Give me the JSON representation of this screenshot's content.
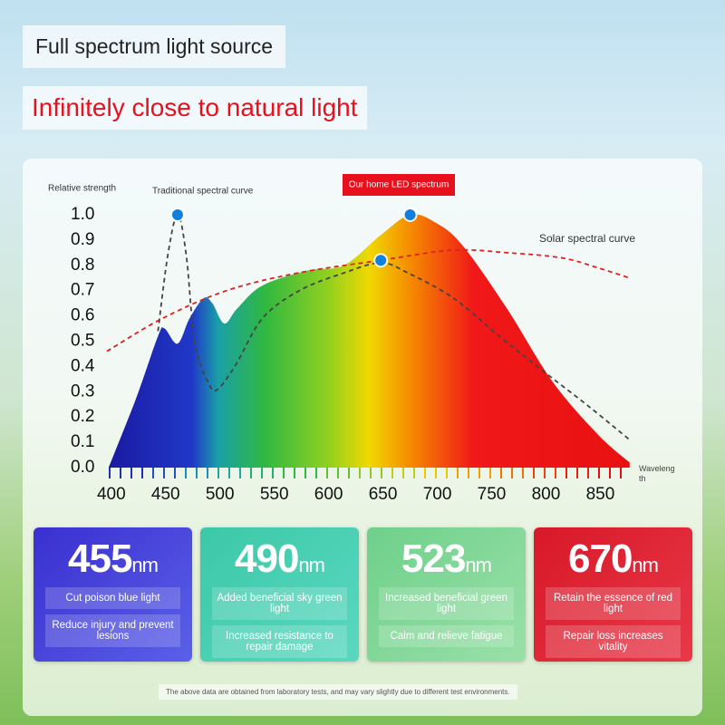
{
  "header": {
    "title": "Full spectrum light source",
    "subtitle": "Infinitely close to natural light"
  },
  "chart_data": {
    "type": "line",
    "y_label": "Relative strength",
    "x_label": "Wavelength",
    "xlim": [
      396,
      878
    ],
    "xticks": [
      400,
      450,
      500,
      550,
      600,
      650,
      700,
      750,
      800,
      850
    ],
    "ylim": [
      0,
      1
    ],
    "yticks": [
      {
        "value": 0,
        "label": "0.0"
      },
      0.1,
      0.2,
      0.3,
      0.4,
      0.5,
      0.6,
      0.7,
      0.8,
      0.9,
      {
        "value": 1,
        "label": "1.0"
      }
    ],
    "series": [
      {
        "name": "Our home LED spectrum",
        "color": "#e8101c",
        "area": true,
        "x": [
          397.5,
          422.5,
          443,
          449,
          461,
          472,
          485,
          493,
          504,
          516,
          539,
          581,
          614,
          648,
          675,
          698,
          723,
          764,
          806,
          848,
          877
        ],
        "values": [
          0,
          0.27,
          0.52,
          0.55,
          0.49,
          0.59,
          0.67,
          0.65,
          0.57,
          0.63,
          0.72,
          0.78,
          0.8,
          0.92,
          1.0,
          0.97,
          0.88,
          0.63,
          0.34,
          0.13,
          0.02
        ]
      },
      {
        "name": "Traditional spectral curve",
        "color": "#444444",
        "x": [
          443,
          452,
          461,
          469,
          477,
          490,
          498,
          515,
          539,
          573,
          614,
          648,
          673,
          715,
          757,
          798,
          840,
          877
        ],
        "values": [
          0.54,
          0.84,
          1.0,
          0.84,
          0.49,
          0.33,
          0.31,
          0.41,
          0.59,
          0.7,
          0.77,
          0.81,
          0.77,
          0.67,
          0.52,
          0.38,
          0.24,
          0.11
        ]
      },
      {
        "name": "Solar spectral curve",
        "color": "#e02020",
        "x": [
          396,
          447,
          506,
          572,
          648,
          714,
          764,
          814,
          848,
          877
        ],
        "values": [
          0.46,
          0.59,
          0.7,
          0.77,
          0.82,
          0.86,
          0.85,
          0.83,
          0.79,
          0.75
        ]
      }
    ]
  },
  "cards": [
    {
      "value": "455",
      "unit": "nm",
      "line1": "Cut poison blue light",
      "line2": "Reduce injury and prevent lesions"
    },
    {
      "value": "490",
      "unit": "nm",
      "line1": "Added beneficial sky green light",
      "line2": "Increased resistance to repair damage"
    },
    {
      "value": "523",
      "unit": "nm",
      "line1": "Increased beneficial green light",
      "line2": "Calm and relieve fatigue"
    },
    {
      "value": "670",
      "unit": "nm",
      "line1": "Retain the essence of red light",
      "line2": "Repair loss increases vitality"
    }
  ],
  "footnote": "The above data are obtained from laboratory tests, and may vary slightly due to different test environments."
}
